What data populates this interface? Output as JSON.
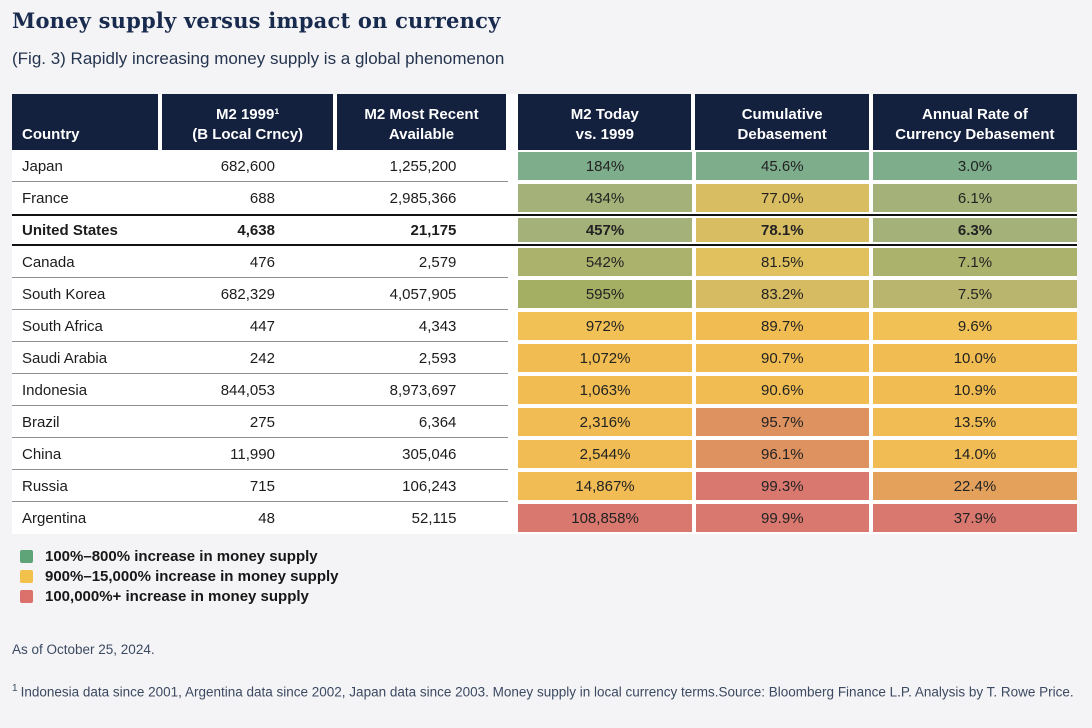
{
  "header": {
    "title": "Money supply versus impact on currency",
    "subtitle": "(Fig. 3) Rapidly increasing money supply is a global phenomenon"
  },
  "table": {
    "header_bg": "#13203e",
    "columns": [
      {
        "id": "country",
        "line1": "Country",
        "line2": ""
      },
      {
        "id": "m2-1999",
        "line1": "M2 1999¹",
        "line2": "(B Local Crncy)"
      },
      {
        "id": "m2-recent",
        "line1": "M2 Most Recent",
        "line2": "Available"
      },
      {
        "id": "m2-today",
        "line1": "M2 Today",
        "line2": "vs. 1999"
      },
      {
        "id": "cumulative",
        "line1": "Cumulative",
        "line2": "Debasement"
      },
      {
        "id": "annual",
        "line1": "Annual Rate of",
        "line2": "Currency Debasement"
      }
    ],
    "rows": [
      {
        "country": "Japan",
        "m2_1999": "682,600",
        "m2_recent": "1,255,200",
        "m2_today": "184%",
        "m2_today_color": "#7ead8c",
        "cumulative": "45.6%",
        "cumulative_color": "#7ead8c",
        "annual": "3.0%",
        "annual_color": "#7ead8c",
        "bold": false
      },
      {
        "country": "France",
        "m2_1999": "688",
        "m2_recent": "2,985,366",
        "m2_today": "434%",
        "m2_today_color": "#a4b179",
        "cumulative": "77.0%",
        "cumulative_color": "#d9bd62",
        "annual": "6.1%",
        "annual_color": "#a4b179",
        "bold": false
      },
      {
        "country": "United States",
        "m2_1999": "4,638",
        "m2_recent": "21,175",
        "m2_today": "457%",
        "m2_today_color": "#a4b179",
        "cumulative": "78.1%",
        "cumulative_color": "#d9bd62",
        "annual": "6.3%",
        "annual_color": "#a4b179",
        "bold": true
      },
      {
        "country": "Canada",
        "m2_1999": "476",
        "m2_recent": "2,579",
        "m2_today": "542%",
        "m2_today_color": "#abb26c",
        "cumulative": "81.5%",
        "cumulative_color": "#e0c15e",
        "annual": "7.1%",
        "annual_color": "#abb26c",
        "bold": false
      },
      {
        "country": "South Korea",
        "m2_1999": "682,329",
        "m2_recent": "4,057,905",
        "m2_today": "595%",
        "m2_today_color": "#a5af64",
        "cumulative": "83.2%",
        "cumulative_color": "#d6bb63",
        "annual": "7.5%",
        "annual_color": "#b9b56e",
        "bold": false
      },
      {
        "country": "South Africa",
        "m2_1999": "447",
        "m2_recent": "4,343",
        "m2_today": "972%",
        "m2_today_color": "#f2c156",
        "cumulative": "89.7%",
        "cumulative_color": "#f1bd52",
        "annual": "9.6%",
        "annual_color": "#f2c156",
        "bold": false
      },
      {
        "country": "Saudi Arabia",
        "m2_1999": "242",
        "m2_recent": "2,593",
        "m2_today": "1,072%",
        "m2_today_color": "#f1bd52",
        "cumulative": "90.7%",
        "cumulative_color": "#f1bd52",
        "annual": "10.0%",
        "annual_color": "#f1bd52",
        "bold": false
      },
      {
        "country": "Indonesia",
        "m2_1999": "844,053",
        "m2_recent": "8,973,697",
        "m2_today": "1,063%",
        "m2_today_color": "#f1bd52",
        "cumulative": "90.6%",
        "cumulative_color": "#f1bd52",
        "annual": "10.9%",
        "annual_color": "#f1bd52",
        "bold": false
      },
      {
        "country": "Brazil",
        "m2_1999": "275",
        "m2_recent": "6,364",
        "m2_today": "2,316%",
        "m2_today_color": "#f0bc53",
        "cumulative": "95.7%",
        "cumulative_color": "#de9260",
        "annual": "13.5%",
        "annual_color": "#f0bc53",
        "bold": false
      },
      {
        "country": "China",
        "m2_1999": "11,990",
        "m2_recent": "305,046",
        "m2_today": "2,544%",
        "m2_today_color": "#f0bc53",
        "cumulative": "96.1%",
        "cumulative_color": "#de9260",
        "annual": "14.0%",
        "annual_color": "#f0bc53",
        "bold": false
      },
      {
        "country": "Russia",
        "m2_1999": "715",
        "m2_recent": "106,243",
        "m2_today": "14,867%",
        "m2_today_color": "#f0bc53",
        "cumulative": "99.3%",
        "cumulative_color": "#d9786f",
        "annual": "22.4%",
        "annual_color": "#e3a15c",
        "bold": false
      },
      {
        "country": "Argentina",
        "m2_1999": "48",
        "m2_recent": "52,115",
        "m2_today": "108,858%",
        "m2_today_color": "#d9786f",
        "cumulative": "99.9%",
        "cumulative_color": "#d9786f",
        "annual": "37.9%",
        "annual_color": "#d9786f",
        "bold": false
      }
    ]
  },
  "legend": {
    "items": [
      {
        "color": "#5fa378",
        "label": "100%–800% increase in money supply"
      },
      {
        "color": "#f2c14b",
        "label": "900%–15,000% increase in money supply"
      },
      {
        "color": "#dc706b",
        "label": "100,000%+ increase in money supply"
      }
    ]
  },
  "footer": {
    "as_of": "As of October 25, 2024.",
    "footnote_marker": "1",
    "footnote_text": "Indonesia data since 2001, Argentina data since 2002, Japan data since 2003. Money supply in local currency terms.Source: Bloomberg Finance L.P. Analysis by T. Rowe Price."
  },
  "chart_data": {
    "type": "table",
    "title": "Money supply versus impact on currency",
    "subtitle": "(Fig. 3) Rapidly increasing money supply is a global phenomenon",
    "columns": [
      "Country",
      "M2 1999 (B Local Crncy)",
      "M2 Most Recent Available",
      "M2 Today vs. 1999",
      "Cumulative Debasement",
      "Annual Rate of Currency Debasement"
    ],
    "rows": [
      [
        "Japan",
        682600,
        1255200,
        "184%",
        "45.6%",
        "3.0%"
      ],
      [
        "France",
        688,
        2985366,
        "434%",
        "77.0%",
        "6.1%"
      ],
      [
        "United States",
        4638,
        21175,
        "457%",
        "78.1%",
        "6.3%"
      ],
      [
        "Canada",
        476,
        2579,
        "542%",
        "81.5%",
        "7.1%"
      ],
      [
        "South Korea",
        682329,
        4057905,
        "595%",
        "83.2%",
        "7.5%"
      ],
      [
        "South Africa",
        447,
        4343,
        "972%",
        "89.7%",
        "9.6%"
      ],
      [
        "Saudi Arabia",
        242,
        2593,
        "1,072%",
        "90.7%",
        "10.0%"
      ],
      [
        "Indonesia",
        844053,
        8973697,
        "1,063%",
        "90.6%",
        "10.9%"
      ],
      [
        "Brazil",
        275,
        6364,
        "2,316%",
        "95.7%",
        "13.5%"
      ],
      [
        "China",
        11990,
        305046,
        "2,544%",
        "96.1%",
        "14.0%"
      ],
      [
        "Russia",
        715,
        106243,
        "14,867%",
        "99.3%",
        "22.4%"
      ],
      [
        "Argentina",
        48,
        52115,
        "108,858%",
        "99.9%",
        "37.9%"
      ]
    ],
    "highlighted_row": "United States",
    "color_scale_legend": [
      "100%–800% increase in money supply = green",
      "900%–15,000% increase in money supply = yellow",
      "100,000%+ increase in money supply = red"
    ]
  }
}
